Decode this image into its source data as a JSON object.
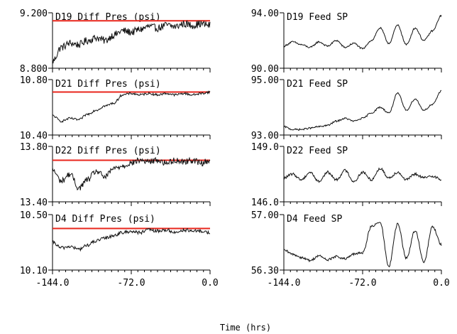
{
  "figure": {
    "xlabel": "Time (hrs)",
    "x_ticks": [
      -144.0,
      -72.0,
      0.0
    ],
    "x_tick_labels": [
      "-144.0",
      "-72.0",
      "0.0"
    ]
  },
  "chart_data": [
    {
      "type": "line",
      "title": "D19 Diff Pres (psi)",
      "xlabel": "Time (hrs)",
      "xlim": [
        -144.0,
        0.0
      ],
      "ylim": [
        8.8,
        9.2
      ],
      "y_tick_labels": [
        "9.200",
        "8.800"
      ],
      "reference_line": {
        "value": 9.142,
        "color": "#e8261c"
      },
      "series": [
        {
          "noise": 0.027,
          "x": [
            -144,
            -136,
            -128,
            -120,
            -112,
            -104,
            -96,
            -88,
            -80,
            -72,
            -64,
            -56,
            -48,
            -40,
            -32,
            -24,
            -16,
            -8,
            0
          ],
          "values": [
            8.85,
            8.95,
            8.98,
            8.97,
            9.0,
            9.02,
            9.0,
            9.04,
            9.07,
            9.06,
            9.08,
            9.1,
            9.09,
            9.11,
            9.1,
            9.12,
            9.11,
            9.12,
            9.11
          ]
        }
      ]
    },
    {
      "type": "line",
      "title": "D19 Feed SP",
      "xlabel": "Time (hrs)",
      "xlim": [
        -144.0,
        0.0
      ],
      "ylim": [
        90.0,
        94.0
      ],
      "y_tick_labels": [
        "94.00",
        "90.00"
      ],
      "series": [
        {
          "noise": 0.06,
          "x": [
            -144,
            -136,
            -128,
            -120,
            -112,
            -104,
            -96,
            -88,
            -80,
            -72,
            -64,
            -56,
            -48,
            -40,
            -32,
            -24,
            -16,
            -8,
            0
          ],
          "values": [
            91.6,
            91.9,
            91.7,
            91.5,
            91.9,
            91.6,
            92.0,
            91.5,
            91.8,
            91.4,
            92.0,
            92.9,
            91.8,
            93.1,
            91.7,
            92.9,
            92.0,
            92.7,
            93.8
          ]
        }
      ]
    },
    {
      "type": "line",
      "title": "D21 Diff Pres (psi)",
      "xlabel": "Time (hrs)",
      "xlim": [
        -144.0,
        0.0
      ],
      "ylim": [
        10.4,
        10.8
      ],
      "y_tick_labels": [
        "10.80",
        "10.40"
      ],
      "reference_line": {
        "value": 10.71,
        "color": "#e8261c"
      },
      "series": [
        {
          "noise": 0.008,
          "x": [
            -144,
            -136,
            -128,
            -120,
            -112,
            -104,
            -96,
            -88,
            -80,
            -72,
            -64,
            -56,
            -48,
            -40,
            -32,
            -24,
            -16,
            -8,
            0
          ],
          "values": [
            10.54,
            10.5,
            10.52,
            10.51,
            10.55,
            10.58,
            10.61,
            10.63,
            10.69,
            10.7,
            10.69,
            10.7,
            10.69,
            10.7,
            10.69,
            10.7,
            10.69,
            10.7,
            10.71
          ]
        }
      ]
    },
    {
      "type": "line",
      "title": "D21 Feed SP",
      "xlabel": "Time (hrs)",
      "xlim": [
        -144.0,
        0.0
      ],
      "ylim": [
        93.0,
        95.0
      ],
      "y_tick_labels": [
        "95.00",
        "93.00"
      ],
      "series": [
        {
          "noise": 0.03,
          "x": [
            -144,
            -136,
            -128,
            -120,
            -112,
            -104,
            -96,
            -88,
            -80,
            -72,
            -64,
            -56,
            -48,
            -40,
            -32,
            -24,
            -16,
            -8,
            0
          ],
          "values": [
            93.3,
            93.2,
            93.2,
            93.25,
            93.3,
            93.35,
            93.5,
            93.6,
            93.5,
            93.6,
            93.8,
            94.0,
            93.8,
            94.5,
            93.9,
            94.3,
            93.9,
            94.1,
            94.6
          ]
        }
      ]
    },
    {
      "type": "line",
      "title": "D22 Diff Pres (psi)",
      "xlabel": "Time (hrs)",
      "xlim": [
        -144.0,
        0.0
      ],
      "ylim": [
        13.4,
        13.8
      ],
      "y_tick_labels": [
        "13.80",
        "13.40"
      ],
      "reference_line": {
        "value": 13.7,
        "color": "#e8261c"
      },
      "series": [
        {
          "noise": 0.022,
          "x": [
            -144,
            -136,
            -128,
            -120,
            -112,
            -104,
            -96,
            -88,
            -80,
            -72,
            -64,
            -56,
            -48,
            -40,
            -32,
            -24,
            -16,
            -8,
            0
          ],
          "values": [
            13.63,
            13.55,
            13.6,
            13.5,
            13.56,
            13.62,
            13.58,
            13.64,
            13.66,
            13.68,
            13.7,
            13.69,
            13.7,
            13.68,
            13.7,
            13.69,
            13.7,
            13.68,
            13.7
          ]
        }
      ]
    },
    {
      "type": "line",
      "title": "D22 Feed SP",
      "xlabel": "Time (hrs)",
      "xlim": [
        -144.0,
        0.0
      ],
      "ylim": [
        146.0,
        149.0
      ],
      "y_tick_labels": [
        "149.0",
        "146.0"
      ],
      "series": [
        {
          "noise": 0.07,
          "x": [
            -144,
            -136,
            -128,
            -120,
            -112,
            -104,
            -96,
            -88,
            -80,
            -72,
            -64,
            -56,
            -48,
            -40,
            -32,
            -24,
            -16,
            -8,
            0
          ],
          "values": [
            147.3,
            147.5,
            147.2,
            147.6,
            147.1,
            147.6,
            147.2,
            147.7,
            147.1,
            147.6,
            147.2,
            147.8,
            147.3,
            147.6,
            147.2,
            147.5,
            147.3,
            147.4,
            147.2
          ]
        }
      ]
    },
    {
      "type": "line",
      "title": "D4 Diff Pres (psi)",
      "xlabel": "Time (hrs)",
      "xlim": [
        -144.0,
        0.0
      ],
      "ylim": [
        10.1,
        10.5
      ],
      "y_tick_labels": [
        "10.50",
        "10.10"
      ],
      "reference_line": {
        "value": 10.4,
        "color": "#e8261c"
      },
      "series": [
        {
          "noise": 0.012,
          "x": [
            -144,
            -136,
            -128,
            -120,
            -112,
            -104,
            -96,
            -88,
            -80,
            -72,
            -64,
            -56,
            -48,
            -40,
            -32,
            -24,
            -16,
            -8,
            0
          ],
          "values": [
            10.3,
            10.26,
            10.27,
            10.25,
            10.28,
            10.31,
            10.33,
            10.35,
            10.37,
            10.38,
            10.37,
            10.39,
            10.38,
            10.39,
            10.37,
            10.39,
            10.38,
            10.38,
            10.37
          ]
        }
      ]
    },
    {
      "type": "line",
      "title": "D4 Feed SP",
      "xlabel": "Time (hrs)",
      "xlim": [
        -144.0,
        0.0
      ],
      "ylim": [
        56.3,
        57.0
      ],
      "y_tick_labels": [
        "57.00",
        "56.30"
      ],
      "series": [
        {
          "noise": 0.015,
          "x": [
            -144,
            -136,
            -128,
            -120,
            -112,
            -104,
            -96,
            -88,
            -80,
            -72,
            -64,
            -56,
            -48,
            -40,
            -32,
            -24,
            -16,
            -8,
            0
          ],
          "values": [
            56.55,
            56.5,
            56.46,
            56.42,
            56.48,
            56.43,
            56.47,
            56.44,
            56.5,
            56.52,
            56.85,
            56.9,
            56.35,
            56.88,
            56.45,
            56.8,
            56.4,
            56.85,
            56.62
          ]
        }
      ]
    }
  ]
}
